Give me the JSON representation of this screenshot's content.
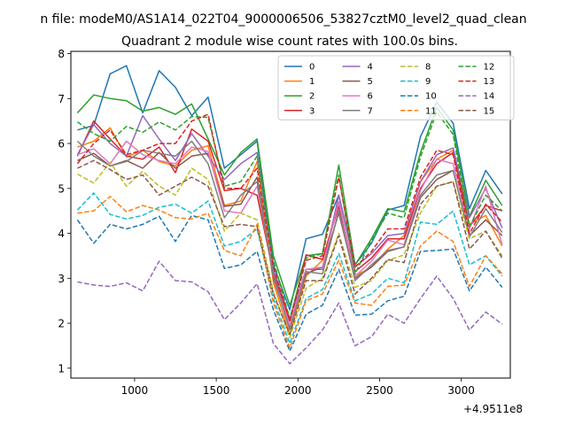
{
  "chart_data": {
    "type": "line",
    "suptitle": "n file: modeM0/AS1A14_022T04_9000006506_53827cztM0_level2_quad_clean",
    "title": "Quadrant 2 module wise count rates with 100.0s bins.",
    "xlabel": "",
    "ylabel": "",
    "x_offset_label": "+4.9511e8",
    "xlim": [
      610,
      3300
    ],
    "ylim": [
      0.78,
      8.05
    ],
    "xticks": [
      1000,
      1500,
      2000,
      2500,
      3000
    ],
    "yticks": [
      1,
      2,
      3,
      4,
      5,
      6,
      7,
      8
    ],
    "grid": false,
    "legend_position": "upper-right",
    "legend_columns": 4,
    "x": [
      650,
      750,
      850,
      950,
      1050,
      1150,
      1250,
      1350,
      1450,
      1550,
      1650,
      1750,
      1850,
      1950,
      2050,
      2150,
      2250,
      2350,
      2450,
      2550,
      2650,
      2750,
      2850,
      2950,
      3050,
      3150,
      3250
    ],
    "series": [
      {
        "name": "0",
        "color": "#1f77b4",
        "dash": "solid",
        "values": [
          6.3,
          6.4,
          7.55,
          7.73,
          6.68,
          7.62,
          7.25,
          6.62,
          7.03,
          5.45,
          5.75,
          6.05,
          3.3,
          2.3,
          3.88,
          3.98,
          4.85,
          3.3,
          3.78,
          4.52,
          4.62,
          6.15,
          6.92,
          6.45,
          4.55,
          5.4,
          4.88
        ]
      },
      {
        "name": "1",
        "color": "#ff7f0e",
        "dash": "solid",
        "values": [
          5.92,
          6.05,
          6.35,
          5.7,
          5.85,
          5.6,
          5.5,
          5.85,
          5.95,
          4.62,
          4.72,
          5.6,
          2.9,
          1.75,
          3.05,
          3.4,
          4.7,
          3.05,
          3.25,
          3.65,
          3.95,
          5.15,
          5.65,
          5.85,
          4.2,
          4.4,
          3.72
        ]
      },
      {
        "name": "2",
        "color": "#2ca02c",
        "dash": "solid",
        "values": [
          6.68,
          7.08,
          7.0,
          6.95,
          6.72,
          6.8,
          6.65,
          6.88,
          6.1,
          5.3,
          5.8,
          6.1,
          3.5,
          2.4,
          3.5,
          3.55,
          5.52,
          3.3,
          3.88,
          4.55,
          4.48,
          5.8,
          6.8,
          6.3,
          4.38,
          5.18,
          4.62
        ]
      },
      {
        "name": "3",
        "color": "#d62728",
        "dash": "solid",
        "values": [
          5.72,
          6.5,
          6.1,
          5.72,
          5.65,
          5.92,
          5.35,
          6.32,
          6.05,
          4.95,
          5.0,
          4.85,
          3.1,
          2.05,
          3.52,
          3.42,
          4.6,
          3.15,
          3.45,
          3.88,
          3.88,
          5.0,
          5.55,
          5.8,
          4.15,
          4.62,
          4.5
        ]
      },
      {
        "name": "4",
        "color": "#9467bd",
        "dash": "solid",
        "values": [
          5.75,
          6.42,
          6.0,
          5.72,
          6.62,
          6.1,
          5.62,
          6.22,
          5.72,
          5.2,
          5.55,
          5.8,
          3.2,
          2.1,
          3.2,
          3.2,
          4.85,
          3.25,
          3.55,
          3.95,
          4.0,
          5.15,
          5.75,
          5.9,
          4.35,
          5.0,
          4.12
        ]
      },
      {
        "name": "5",
        "color": "#8c564b",
        "dash": "solid",
        "values": [
          5.62,
          5.78,
          5.5,
          5.62,
          5.45,
          5.8,
          5.45,
          5.72,
          5.78,
          4.6,
          4.65,
          5.25,
          3.0,
          1.9,
          3.1,
          3.25,
          4.45,
          3.0,
          3.25,
          3.6,
          3.7,
          4.8,
          5.2,
          5.4,
          3.95,
          4.3,
          3.95
        ]
      },
      {
        "name": "6",
        "color": "#e377c2",
        "dash": "solid",
        "values": [
          5.75,
          5.88,
          5.55,
          6.05,
          5.75,
          5.62,
          5.55,
          5.92,
          5.82,
          4.5,
          4.45,
          5.05,
          3.05,
          1.95,
          3.2,
          3.25,
          4.7,
          3.05,
          3.38,
          3.85,
          3.75,
          4.95,
          5.65,
          5.55,
          4.1,
          5.05,
          3.75
        ]
      },
      {
        "name": "7",
        "color": "#7f7f7f",
        "dash": "solid",
        "values": [
          6.05,
          5.72,
          5.5,
          5.6,
          5.85,
          5.78,
          5.72,
          6.05,
          5.55,
          4.35,
          4.85,
          5.15,
          3.05,
          1.85,
          3.15,
          3.1,
          4.5,
          2.95,
          3.3,
          3.62,
          3.7,
          4.85,
          5.3,
          5.4,
          3.92,
          4.55,
          4.02
        ]
      },
      {
        "name": "8",
        "color": "#bcbd22",
        "dash": "dashed",
        "values": [
          5.32,
          5.12,
          5.58,
          5.05,
          5.38,
          5.05,
          4.85,
          5.45,
          5.2,
          4.05,
          4.45,
          4.3,
          2.7,
          1.68,
          2.78,
          3.0,
          4.0,
          2.8,
          2.95,
          3.4,
          3.52,
          4.45,
          5.05,
          5.15,
          3.88,
          4.05,
          3.5
        ]
      },
      {
        "name": "9",
        "color": "#17becf",
        "dash": "dashed",
        "values": [
          4.52,
          4.9,
          4.42,
          4.32,
          4.4,
          4.58,
          4.65,
          4.45,
          4.72,
          3.72,
          3.82,
          4.1,
          2.55,
          1.55,
          2.55,
          2.75,
          3.55,
          2.5,
          2.65,
          3.0,
          2.9,
          4.25,
          4.2,
          4.5,
          3.3,
          3.5,
          3.05
        ]
      },
      {
        "name": "10",
        "color": "#1f77b4",
        "dash": "dashed",
        "values": [
          4.3,
          3.78,
          4.2,
          4.1,
          4.2,
          4.38,
          3.82,
          4.4,
          4.3,
          3.22,
          3.3,
          3.6,
          2.3,
          1.38,
          2.2,
          2.4,
          3.2,
          2.18,
          2.2,
          2.5,
          2.6,
          3.6,
          3.62,
          3.65,
          2.72,
          3.25,
          2.8
        ]
      },
      {
        "name": "11",
        "color": "#ff7f0e",
        "dash": "dashed",
        "values": [
          4.45,
          4.5,
          4.82,
          4.48,
          4.62,
          4.52,
          4.35,
          4.32,
          4.45,
          3.62,
          3.5,
          4.2,
          2.45,
          1.45,
          2.5,
          2.65,
          3.4,
          2.45,
          2.4,
          2.82,
          2.85,
          3.72,
          4.05,
          3.82,
          2.82,
          3.5,
          3.1
        ]
      },
      {
        "name": "12",
        "color": "#2ca02c",
        "dash": "dashed",
        "values": [
          6.48,
          6.22,
          6.05,
          6.38,
          6.25,
          6.48,
          6.3,
          6.6,
          6.58,
          5.05,
          5.15,
          5.72,
          3.4,
          2.1,
          3.45,
          3.55,
          5.3,
          3.1,
          3.85,
          4.45,
          4.35,
          5.7,
          6.7,
          6.2,
          4.15,
          4.85,
          4.5
        ]
      },
      {
        "name": "13",
        "color": "#d62728",
        "dash": "dashed",
        "values": [
          5.55,
          6.0,
          6.3,
          5.75,
          5.85,
          6.0,
          6.0,
          6.5,
          6.65,
          5.0,
          5.0,
          5.45,
          3.25,
          2.05,
          3.4,
          3.5,
          5.25,
          3.25,
          3.6,
          4.1,
          4.1,
          5.25,
          5.85,
          5.75,
          4.0,
          4.65,
          4.25
        ]
      },
      {
        "name": "14",
        "color": "#9467bd",
        "dash": "dashed",
        "values": [
          2.92,
          2.85,
          2.82,
          2.9,
          2.72,
          3.38,
          2.95,
          2.92,
          2.7,
          2.08,
          2.45,
          2.88,
          1.55,
          1.1,
          1.45,
          1.85,
          2.45,
          1.5,
          1.7,
          2.2,
          2.0,
          2.55,
          3.05,
          2.55,
          1.85,
          2.25,
          1.98
        ]
      },
      {
        "name": "15",
        "color": "#8c564b",
        "dash": "dashed",
        "values": [
          5.45,
          5.62,
          5.42,
          5.2,
          5.3,
          4.85,
          5.05,
          5.25,
          5.05,
          4.15,
          4.2,
          4.15,
          2.65,
          1.75,
          2.95,
          2.95,
          3.95,
          2.65,
          3.0,
          3.42,
          3.35,
          4.65,
          5.05,
          5.15,
          3.65,
          4.05,
          3.45
        ]
      }
    ]
  }
}
